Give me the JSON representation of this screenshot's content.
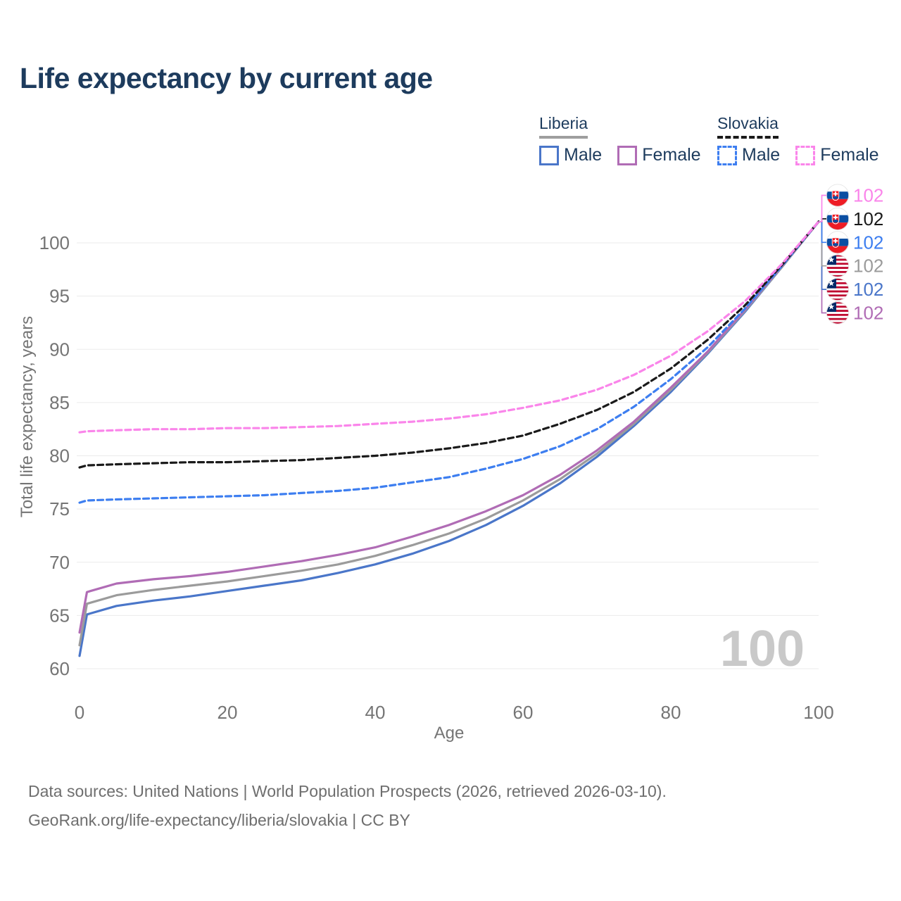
{
  "header": {
    "title": "Life expectancy by current age"
  },
  "legend": {
    "groups": [
      {
        "id": "liberia",
        "label": "Liberia",
        "style": "solid",
        "underline_color": "#9e9e9e",
        "items": [
          {
            "label": "Male",
            "color": "#4a76c9",
            "dashed": false
          },
          {
            "label": "Female",
            "color": "#b06cb5",
            "dashed": false
          }
        ]
      },
      {
        "id": "slovakia",
        "label": "Slovakia",
        "style": "dashed",
        "underline_color": "#1a1a1a",
        "items": [
          {
            "label": "Male",
            "color": "#3d7ef0",
            "dashed": true
          },
          {
            "label": "Female",
            "color": "#fa85ea",
            "dashed": true
          }
        ]
      }
    ]
  },
  "chart_data": {
    "type": "line",
    "title": "Life expectancy by current age",
    "xlabel": "Age",
    "ylabel": "Total life expectancy, years",
    "xlim": [
      0,
      100
    ],
    "ylim": [
      60,
      102.5
    ],
    "xticks": [
      0,
      20,
      40,
      60,
      80,
      100
    ],
    "yticks": [
      60,
      65,
      70,
      75,
      80,
      85,
      90,
      95,
      100
    ],
    "grid": "horizontal",
    "legend_position": "top-right",
    "watermark": "100",
    "ages": [
      0,
      1,
      5,
      10,
      15,
      20,
      25,
      30,
      35,
      40,
      45,
      50,
      55,
      60,
      65,
      70,
      75,
      80,
      85,
      90,
      95,
      100
    ],
    "series": [
      {
        "id": "liberia-male",
        "name": "Liberia Male",
        "country": "Liberia",
        "dashed": false,
        "color": "#4a76c9",
        "values": [
          61.2,
          65.1,
          65.9,
          66.4,
          66.8,
          67.3,
          67.8,
          68.3,
          69.0,
          69.8,
          70.8,
          72.0,
          73.5,
          75.3,
          77.4,
          79.9,
          82.8,
          86.0,
          89.6,
          93.5,
          97.7,
          102.0
        ]
      },
      {
        "id": "liberia-total",
        "name": "Liberia",
        "country": "Liberia",
        "dashed": false,
        "color": "#9b9b9b",
        "values": [
          62.2,
          66.1,
          66.9,
          67.4,
          67.8,
          68.2,
          68.7,
          69.2,
          69.8,
          70.6,
          71.6,
          72.7,
          74.1,
          75.8,
          77.8,
          80.2,
          83.0,
          86.2,
          89.7,
          93.6,
          97.7,
          102.0
        ]
      },
      {
        "id": "liberia-female",
        "name": "Liberia Female",
        "country": "Liberia",
        "dashed": false,
        "color": "#b06cb5",
        "values": [
          63.4,
          67.2,
          68.0,
          68.4,
          68.7,
          69.1,
          69.6,
          70.1,
          70.7,
          71.4,
          72.4,
          73.5,
          74.8,
          76.3,
          78.2,
          80.5,
          83.2,
          86.4,
          89.8,
          93.7,
          97.8,
          102.0
        ]
      },
      {
        "id": "slovakia-male",
        "name": "Slovakia Male",
        "country": "Slovakia",
        "dashed": true,
        "color": "#3d7ef0",
        "values": [
          75.6,
          75.8,
          75.9,
          76.0,
          76.1,
          76.2,
          76.3,
          76.5,
          76.7,
          77.0,
          77.5,
          78.0,
          78.8,
          79.7,
          80.9,
          82.5,
          84.6,
          87.2,
          90.2,
          93.8,
          97.8,
          102.0
        ]
      },
      {
        "id": "slovakia-total",
        "name": "Slovakia",
        "country": "Slovakia",
        "dashed": true,
        "color": "#1a1a1a",
        "values": [
          78.9,
          79.1,
          79.2,
          79.3,
          79.4,
          79.4,
          79.5,
          79.6,
          79.8,
          80.0,
          80.3,
          80.7,
          81.2,
          81.9,
          83.0,
          84.3,
          86.0,
          88.2,
          90.9,
          94.1,
          97.9,
          102.0
        ]
      },
      {
        "id": "slovakia-female",
        "name": "Slovakia Female",
        "country": "Slovakia",
        "dashed": true,
        "color": "#fa85ea",
        "values": [
          82.2,
          82.3,
          82.4,
          82.5,
          82.5,
          82.6,
          82.6,
          82.7,
          82.8,
          83.0,
          83.2,
          83.5,
          83.9,
          84.5,
          85.2,
          86.2,
          87.6,
          89.4,
          91.7,
          94.5,
          98.0,
          102.0
        ]
      }
    ],
    "end_labels": [
      {
        "flag": "slovakia",
        "value": "102",
        "color": "#fa85ea",
        "series": "slovakia-female"
      },
      {
        "flag": "slovakia",
        "value": "102",
        "color": "#1a1a1a",
        "series": "slovakia-total"
      },
      {
        "flag": "slovakia",
        "value": "102",
        "color": "#3d7ef0",
        "series": "slovakia-male"
      },
      {
        "flag": "liberia",
        "value": "102",
        "color": "#9b9b9b",
        "series": "liberia-total"
      },
      {
        "flag": "liberia",
        "value": "102",
        "color": "#4a76c9",
        "series": "liberia-male"
      },
      {
        "flag": "liberia",
        "value": "102",
        "color": "#b06cb5",
        "series": "liberia-female"
      }
    ]
  },
  "footer": {
    "line1": "Data sources: United Nations | World Population Prospects (2026, retrieved 2026-03-10).",
    "line2": "GeoRank.org/life-expectancy/liberia/slovakia | CC BY"
  }
}
